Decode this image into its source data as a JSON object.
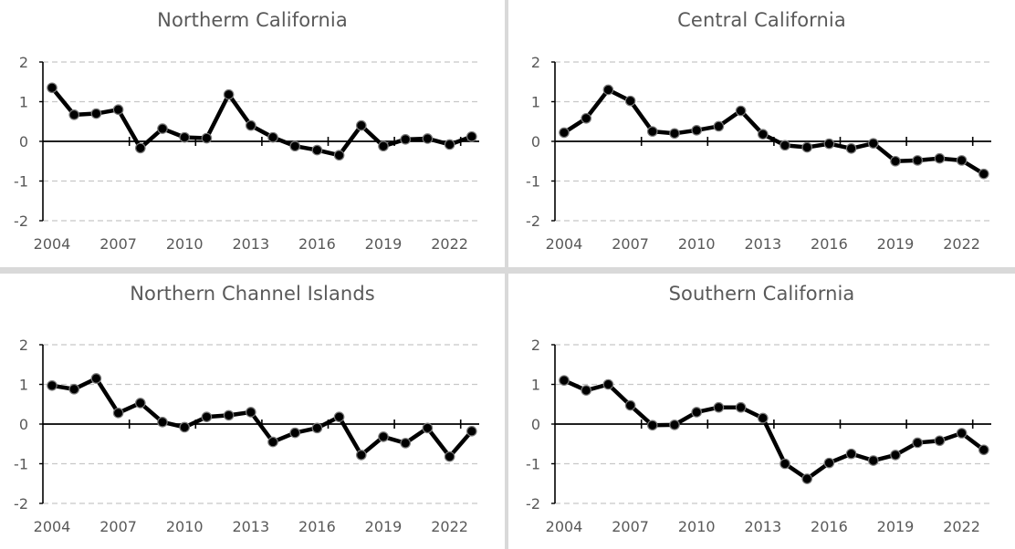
{
  "chart_data": [
    {
      "type": "line",
      "title": "Northerm California",
      "x": [
        2004,
        2005,
        2006,
        2007,
        2008,
        2009,
        2010,
        2011,
        2012,
        2013,
        2014,
        2015,
        2016,
        2017,
        2018,
        2019,
        2020,
        2021,
        2022,
        2023
      ],
      "values": [
        1.35,
        0.67,
        0.7,
        0.8,
        -0.17,
        0.32,
        0.1,
        0.08,
        1.18,
        0.4,
        0.1,
        -0.12,
        -0.22,
        -0.35,
        0.4,
        -0.12,
        0.05,
        0.07,
        -0.08,
        0.12
      ],
      "ylim": [
        -2,
        2
      ],
      "yticks": [
        "2",
        "1",
        "0",
        "-1",
        "-2"
      ],
      "xtick_labels": [
        "2004",
        "2007",
        "2010",
        "2013",
        "2016",
        "2019",
        "2022"
      ],
      "grid": "dashed horizontal",
      "line_color": "#000000"
    },
    {
      "type": "line",
      "title": "Central California",
      "x": [
        2004,
        2005,
        2006,
        2007,
        2008,
        2009,
        2010,
        2011,
        2012,
        2013,
        2014,
        2015,
        2016,
        2017,
        2018,
        2019,
        2020,
        2021,
        2022,
        2023
      ],
      "values": [
        0.22,
        0.58,
        1.3,
        1.02,
        0.25,
        0.2,
        0.28,
        0.38,
        0.77,
        0.18,
        -0.1,
        -0.15,
        -0.06,
        -0.18,
        -0.05,
        -0.5,
        -0.48,
        -0.43,
        -0.48,
        -0.82
      ],
      "ylim": [
        -2,
        2
      ],
      "yticks": [
        "2",
        "1",
        "0",
        "-1",
        "-2"
      ],
      "xtick_labels": [
        "2004",
        "2007",
        "2010",
        "2013",
        "2016",
        "2019",
        "2022"
      ],
      "grid": "dashed horizontal",
      "line_color": "#000000"
    },
    {
      "type": "line",
      "title": "Northern Channel Islands",
      "x": [
        2004,
        2005,
        2006,
        2007,
        2008,
        2009,
        2010,
        2011,
        2012,
        2013,
        2014,
        2015,
        2016,
        2017,
        2018,
        2019,
        2020,
        2021,
        2022,
        2023
      ],
      "values": [
        0.97,
        0.88,
        1.15,
        0.28,
        0.53,
        0.05,
        -0.08,
        0.18,
        0.22,
        0.3,
        -0.45,
        -0.22,
        -0.1,
        0.18,
        -0.78,
        -0.32,
        -0.48,
        -0.1,
        -0.82,
        -0.18
      ],
      "ylim": [
        -2,
        2
      ],
      "yticks": [
        "2",
        "1",
        "0",
        "-1",
        "-2"
      ],
      "xtick_labels": [
        "2004",
        "2007",
        "2010",
        "2013",
        "2016",
        "2019",
        "2022"
      ],
      "grid": "dashed horizontal",
      "line_color": "#000000"
    },
    {
      "type": "line",
      "title": "Southern California",
      "x": [
        2004,
        2005,
        2006,
        2007,
        2008,
        2009,
        2010,
        2011,
        2012,
        2013,
        2014,
        2015,
        2016,
        2017,
        2018,
        2019,
        2020,
        2021,
        2022,
        2023
      ],
      "values": [
        1.1,
        0.85,
        1.0,
        0.47,
        -0.03,
        -0.02,
        0.3,
        0.42,
        0.42,
        0.15,
        -1.0,
        -1.38,
        -0.98,
        -0.75,
        -0.92,
        -0.78,
        -0.47,
        -0.42,
        -0.23,
        -0.65
      ],
      "ylim": [
        -2,
        2
      ],
      "yticks": [
        "2",
        "1",
        "0",
        "-1",
        "-2"
      ],
      "xtick_labels": [
        "2004",
        "2007",
        "2010",
        "2013",
        "2016",
        "2019",
        "2022"
      ],
      "grid": "dashed horizontal",
      "line_color": "#000000"
    }
  ]
}
